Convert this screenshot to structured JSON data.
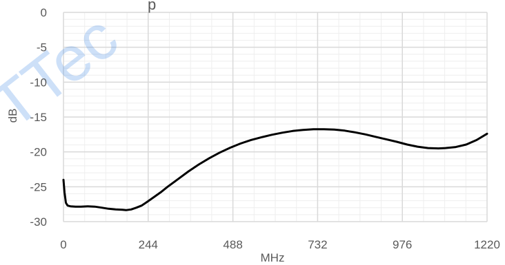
{
  "chart_data": {
    "type": "line",
    "title": "p",
    "xlabel": "MHz",
    "ylabel": "dB",
    "xlim": [
      0,
      1220
    ],
    "ylim": [
      -30,
      0
    ],
    "x_ticks": [
      0,
      244,
      488,
      732,
      976,
      1220
    ],
    "y_ticks": [
      0,
      -5,
      -10,
      -15,
      -20,
      -25,
      -30
    ],
    "grid": true,
    "legend": "none",
    "watermark_text": "TTec",
    "colors": {
      "line": "#000000",
      "major_grid": "#d9d9d9",
      "minor_grid": "#eeeeee",
      "axis_text": "#595959",
      "watermark": "#4a8fe7"
    },
    "series": [
      {
        "values": [
          [
            0,
            -24.0
          ],
          [
            3,
            -25.8
          ],
          [
            7,
            -27.3
          ],
          [
            12,
            -27.7
          ],
          [
            20,
            -27.8
          ],
          [
            35,
            -27.85
          ],
          [
            50,
            -27.85
          ],
          [
            70,
            -27.8
          ],
          [
            90,
            -27.85
          ],
          [
            110,
            -28.0
          ],
          [
            130,
            -28.15
          ],
          [
            150,
            -28.25
          ],
          [
            170,
            -28.3
          ],
          [
            180,
            -28.35
          ],
          [
            195,
            -28.25
          ],
          [
            210,
            -28.0
          ],
          [
            225,
            -27.7
          ],
          [
            240,
            -27.2
          ],
          [
            260,
            -26.5
          ],
          [
            280,
            -25.8
          ],
          [
            300,
            -25.0
          ],
          [
            330,
            -23.9
          ],
          [
            360,
            -22.8
          ],
          [
            390,
            -21.8
          ],
          [
            420,
            -20.9
          ],
          [
            450,
            -20.1
          ],
          [
            480,
            -19.4
          ],
          [
            510,
            -18.8
          ],
          [
            540,
            -18.3
          ],
          [
            570,
            -17.9
          ],
          [
            600,
            -17.55
          ],
          [
            630,
            -17.25
          ],
          [
            660,
            -17.0
          ],
          [
            690,
            -16.85
          ],
          [
            720,
            -16.75
          ],
          [
            750,
            -16.75
          ],
          [
            780,
            -16.8
          ],
          [
            810,
            -16.95
          ],
          [
            840,
            -17.2
          ],
          [
            870,
            -17.5
          ],
          [
            900,
            -17.85
          ],
          [
            930,
            -18.2
          ],
          [
            960,
            -18.55
          ],
          [
            990,
            -18.95
          ],
          [
            1020,
            -19.25
          ],
          [
            1050,
            -19.45
          ],
          [
            1080,
            -19.5
          ],
          [
            1100,
            -19.45
          ],
          [
            1130,
            -19.3
          ],
          [
            1160,
            -18.95
          ],
          [
            1190,
            -18.3
          ],
          [
            1220,
            -17.4
          ]
        ]
      }
    ]
  }
}
